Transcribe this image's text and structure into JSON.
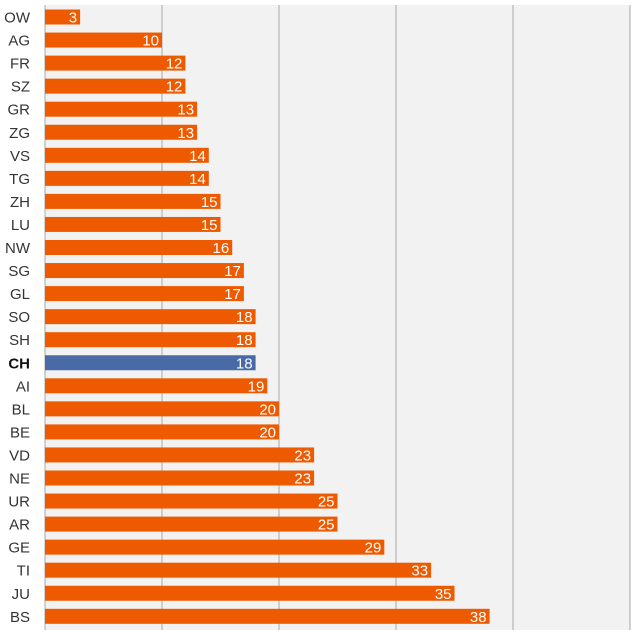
{
  "chart_data": {
    "type": "bar",
    "orientation": "horizontal",
    "categories": [
      "OW",
      "AG",
      "FR",
      "SZ",
      "GR",
      "ZG",
      "VS",
      "TG",
      "ZH",
      "LU",
      "NW",
      "SG",
      "GL",
      "SO",
      "SH",
      "CH",
      "AI",
      "BL",
      "BE",
      "VD",
      "NE",
      "UR",
      "AR",
      "GE",
      "TI",
      "JU",
      "BS"
    ],
    "values": [
      3,
      10,
      12,
      12,
      13,
      13,
      14,
      14,
      15,
      15,
      16,
      17,
      17,
      18,
      18,
      18,
      19,
      20,
      20,
      23,
      23,
      25,
      25,
      29,
      33,
      35,
      38
    ],
    "highlight": "CH",
    "xlim": [
      0,
      50
    ],
    "grid": true,
    "title": "",
    "xlabel": "",
    "ylabel": ""
  },
  "colors": {
    "bar": "#ee5a00",
    "highlight_bar": "#4a6aa5",
    "plot_bg": "#f2f2f2",
    "grid": "#a8a8a8"
  }
}
